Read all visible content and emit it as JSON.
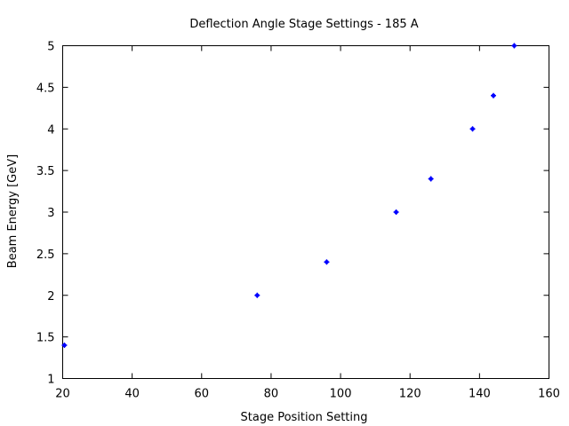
{
  "chart_data": {
    "type": "scatter",
    "title": "Deflection Angle Stage Settings - 185 A",
    "xlabel": "Stage Position Setting",
    "ylabel": "Beam Energy [GeV]",
    "xlim": [
      20,
      160
    ],
    "ylim": [
      1,
      5
    ],
    "xticks": [
      20,
      40,
      60,
      80,
      100,
      120,
      140,
      160
    ],
    "yticks": [
      1,
      1.5,
      2,
      2.5,
      3,
      3.5,
      4,
      4.5,
      5
    ],
    "xtick_labels": [
      "20",
      "40",
      "60",
      "80",
      "100",
      "120",
      "140",
      "160"
    ],
    "ytick_labels": [
      "1",
      "1.5",
      "2",
      "2.5",
      "3",
      "3.5",
      "4",
      "4.5",
      "5"
    ],
    "grid": false,
    "legend": "none",
    "marker_color": "#0000ff",
    "series": [
      {
        "x": [
          20.5,
          76,
          96,
          116,
          126,
          138,
          144,
          150
        ],
        "y": [
          1.4,
          2.0,
          2.4,
          3.0,
          3.4,
          4.0,
          4.4,
          5.0
        ]
      }
    ]
  }
}
